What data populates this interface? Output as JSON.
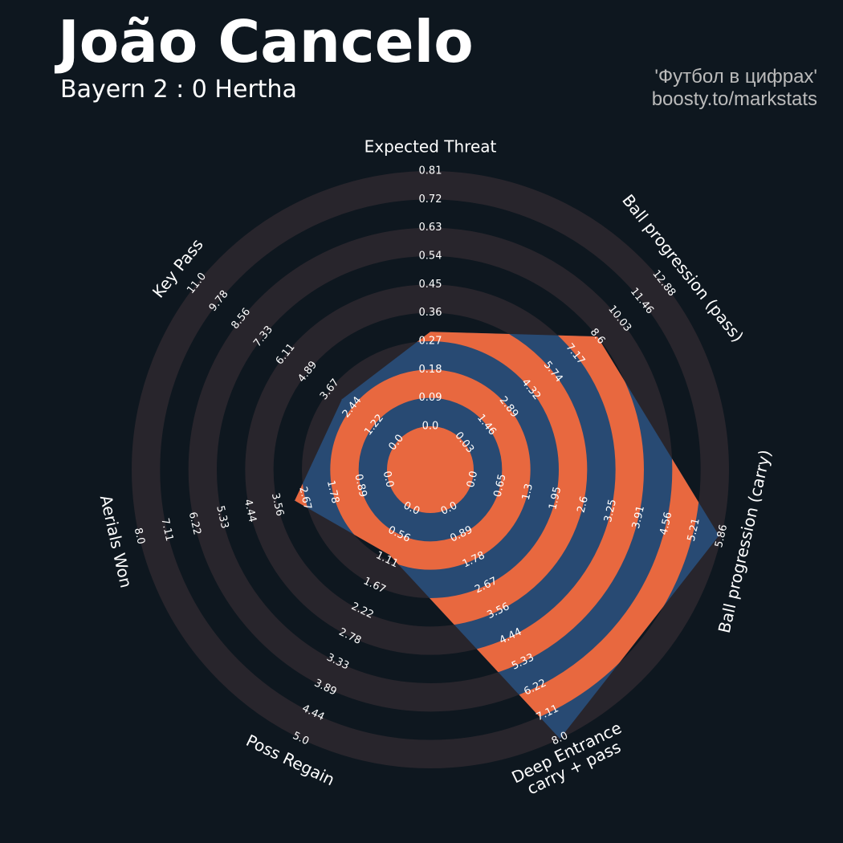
{
  "chart_data": {
    "type": "radar",
    "title": "João Cancelo",
    "subtitle": "Bayern 2 : 0 Hertha",
    "credits": [
      "'Футбол в цифрах'",
      "boosty.to/markstats"
    ],
    "categories": [
      "Expected Threat",
      "Ball progression (pass)",
      "Ball progression (carry)",
      "Deep Entrance\ncarry + pass",
      "Poss Regain",
      "Aerials Won",
      "Key Pass"
    ],
    "values": [
      0.3,
      8.6,
      5.8,
      8.0,
      1.0,
      3.0,
      3.0
    ],
    "lims": [
      [
        0,
        0.81
      ],
      [
        0.03,
        12.88
      ],
      [
        0,
        5.86
      ],
      [
        0,
        8.0
      ],
      [
        0,
        5.0
      ],
      [
        0,
        8.0
      ],
      [
        0,
        11.0
      ]
    ],
    "ticks": [
      [
        {
          "value": 0,
          "label": "0.0"
        },
        0.09,
        0.18,
        0.27,
        0.36,
        0.45,
        0.54,
        0.63,
        0.72,
        0.81
      ],
      [
        0.03,
        1.46,
        2.89,
        4.32,
        5.74,
        7.17,
        8.6,
        10.03,
        11.46,
        12.88
      ],
      [
        {
          "value": 0,
          "label": "0.0"
        },
        0.65,
        1.3,
        1.95,
        2.6,
        3.25,
        3.91,
        4.56,
        5.21,
        5.86
      ],
      [
        {
          "value": 0,
          "label": "0.0"
        },
        0.89,
        1.78,
        2.67,
        3.56,
        4.44,
        5.33,
        6.22,
        7.11,
        {
          "value": 8,
          "label": "8.0"
        }
      ],
      [
        {
          "value": 0,
          "label": "0.0"
        },
        0.56,
        1.11,
        1.67,
        2.22,
        2.78,
        3.33,
        3.89,
        4.44,
        {
          "value": 5,
          "label": "5.0"
        }
      ],
      [
        {
          "value": 0,
          "label": "0.0"
        },
        0.89,
        1.78,
        2.67,
        3.56,
        4.44,
        5.33,
        6.22,
        7.11,
        {
          "value": 8,
          "label": "8.0"
        }
      ],
      [
        {
          "value": 0,
          "label": "0.0"
        },
        1.22,
        2.44,
        3.67,
        4.89,
        6.11,
        7.33,
        8.56,
        9.78,
        {
          "value": 11,
          "label": "11.0"
        }
      ]
    ],
    "colors": {
      "background": "#0e171f",
      "ring": "#28252c",
      "area": "#284a73",
      "highlight": "#e8683f"
    }
  }
}
